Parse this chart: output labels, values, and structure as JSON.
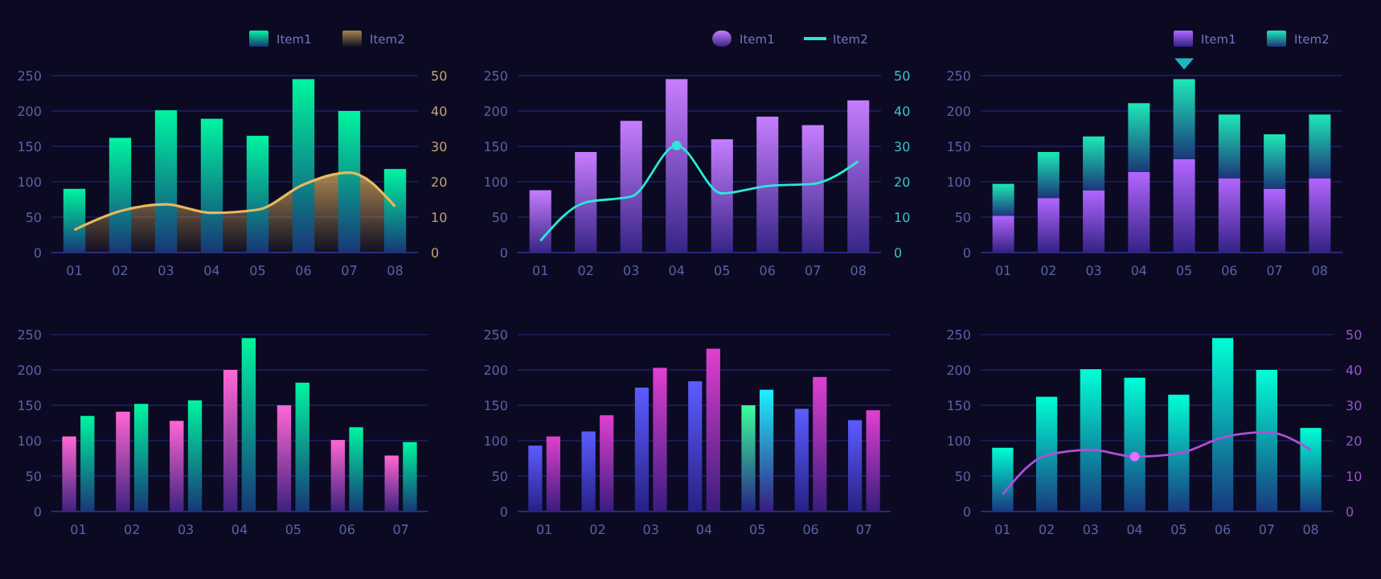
{
  "chart_data": [
    {
      "type": "bar",
      "categories": [
        "01",
        "02",
        "03",
        "04",
        "05",
        "06",
        "07",
        "08"
      ],
      "ylim": [
        0,
        250
      ],
      "yticks": [
        0,
        50,
        100,
        150,
        200,
        250
      ],
      "y2lim": [
        0,
        50
      ],
      "y2ticks": [
        0,
        10,
        20,
        30,
        40,
        50
      ],
      "grid": "y",
      "legend": "top right",
      "series": [
        {
          "name": "Item1",
          "type": "bar",
          "color": "#00f5a0",
          "values": [
            90,
            162,
            201,
            189,
            165,
            245,
            200,
            118
          ]
        },
        {
          "name": "Item2",
          "type": "area",
          "axis": "y2",
          "color": "#e8b860",
          "values": [
            6.4,
            11.7,
            13.6,
            11.2,
            12.1,
            19.2,
            22.6,
            13
          ]
        }
      ]
    },
    {
      "type": "bar",
      "categories": [
        "01",
        "02",
        "03",
        "04",
        "05",
        "06",
        "07",
        "08"
      ],
      "ylim": [
        0,
        250
      ],
      "yticks": [
        0,
        50,
        100,
        150,
        200,
        250
      ],
      "y2lim": [
        0,
        50
      ],
      "y2ticks": [
        0,
        10,
        20,
        30,
        40,
        50
      ],
      "grid": "y",
      "legend": "top right",
      "series": [
        {
          "name": "Item1",
          "type": "bar",
          "color": "#c77dff",
          "values": [
            88,
            142,
            186,
            245,
            160,
            192,
            180,
            215
          ]
        },
        {
          "name": "Item2",
          "type": "line",
          "axis": "y2",
          "color": "#2ee6d6",
          "values": [
            3.3,
            14.2,
            15.8,
            30.2,
            16.7,
            18.8,
            19.4,
            25.8
          ]
        },
        {
          "type": "scatter",
          "axis": "y2",
          "color": "#2ee6d6",
          "values": [
            null,
            null,
            null,
            30.2,
            null,
            null,
            null,
            null
          ]
        }
      ]
    },
    {
      "type": "bar",
      "stacked": true,
      "categories": [
        "01",
        "02",
        "03",
        "04",
        "05",
        "06",
        "07",
        "08"
      ],
      "ylim": [
        0,
        250
      ],
      "yticks": [
        0,
        50,
        100,
        150,
        200,
        250
      ],
      "grid": "y",
      "legend": "top right",
      "series": [
        {
          "name": "Item1",
          "color": "#b366ff",
          "values": [
            52,
            77,
            88,
            114,
            132,
            105,
            90,
            105
          ]
        },
        {
          "name": "Item2",
          "color": "#1de9b6",
          "values": [
            45,
            65,
            76,
            97,
            113,
            90,
            77,
            90
          ]
        }
      ]
    },
    {
      "type": "bar",
      "categories": [
        "01",
        "02",
        "03",
        "04",
        "05",
        "06",
        "07"
      ],
      "ylim": [
        0,
        250
      ],
      "yticks": [
        0,
        50,
        100,
        150,
        200,
        250
      ],
      "grid": "y",
      "series": [
        {
          "color": "#ff66d4",
          "values": [
            106,
            141,
            128,
            200,
            150,
            101,
            79
          ]
        },
        {
          "color": "#00f5a0",
          "values": [
            135,
            152,
            157,
            245,
            182,
            119,
            98
          ]
        }
      ]
    },
    {
      "type": "bar",
      "categories": [
        "01",
        "02",
        "03",
        "04",
        "05",
        "06",
        "07"
      ],
      "ylim": [
        0,
        250
      ],
      "yticks": [
        0,
        50,
        100,
        150,
        200,
        250
      ],
      "grid": "y",
      "series": [
        {
          "color": "#5c5cff",
          "colors": [
            "#5c5cff",
            "#5c5cff",
            "#5c5cff",
            "#5c5cff",
            "#3dff9a",
            "#5c5cff",
            "#5c5cff"
          ],
          "values": [
            93,
            113,
            175,
            184,
            150,
            145,
            129
          ]
        },
        {
          "color": "#e040d0",
          "colors": [
            "#e040d0",
            "#e040d0",
            "#e040d0",
            "#e040d0",
            "#1ff0ff",
            "#e040d0",
            "#e040d0"
          ],
          "values": [
            106,
            136,
            203,
            230,
            172,
            190,
            143
          ]
        }
      ]
    },
    {
      "type": "bar",
      "categories": [
        "01",
        "02",
        "03",
        "04",
        "05",
        "06",
        "07",
        "08"
      ],
      "ylim": [
        0,
        250
      ],
      "yticks": [
        0,
        50,
        100,
        150,
        200,
        250
      ],
      "y2lim": [
        0,
        50
      ],
      "y2ticks": [
        0,
        10,
        20,
        30,
        40,
        50
      ],
      "grid": "y",
      "series": [
        {
          "type": "bar",
          "color": "#00ffd5",
          "values": [
            90,
            162,
            201,
            189,
            165,
            245,
            200,
            118
          ]
        },
        {
          "type": "line",
          "axis": "y2",
          "color": "#b04ed8",
          "values": [
            4.8,
            15.9,
            17.4,
            15.5,
            16.4,
            20.9,
            22.4,
            17.4
          ]
        },
        {
          "type": "scatter",
          "axis": "y2",
          "color": "#e070ff",
          "values": [
            null,
            null,
            null,
            15.5,
            null,
            null,
            null,
            null
          ]
        }
      ]
    }
  ]
}
